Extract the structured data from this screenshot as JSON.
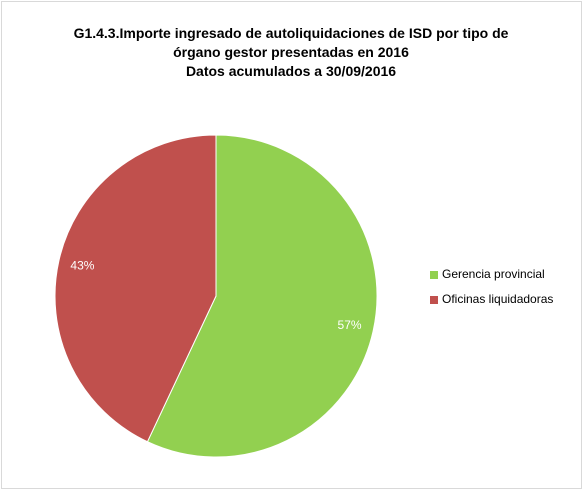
{
  "chart_data": {
    "type": "pie",
    "title": "G1.4.3.Importe ingresado de autoliquidaciones de ISD por tipo de órgano gestor presentadas en 2016",
    "subtitle": "Datos acumulados a 30/09/2016",
    "categories": [
      "Gerencia provincial",
      "Oficinas liquidadoras"
    ],
    "values": [
      57,
      43
    ],
    "value_labels": [
      "57%",
      "43%"
    ],
    "colors": [
      "#92d050",
      "#c0504d"
    ],
    "legend": "right"
  }
}
